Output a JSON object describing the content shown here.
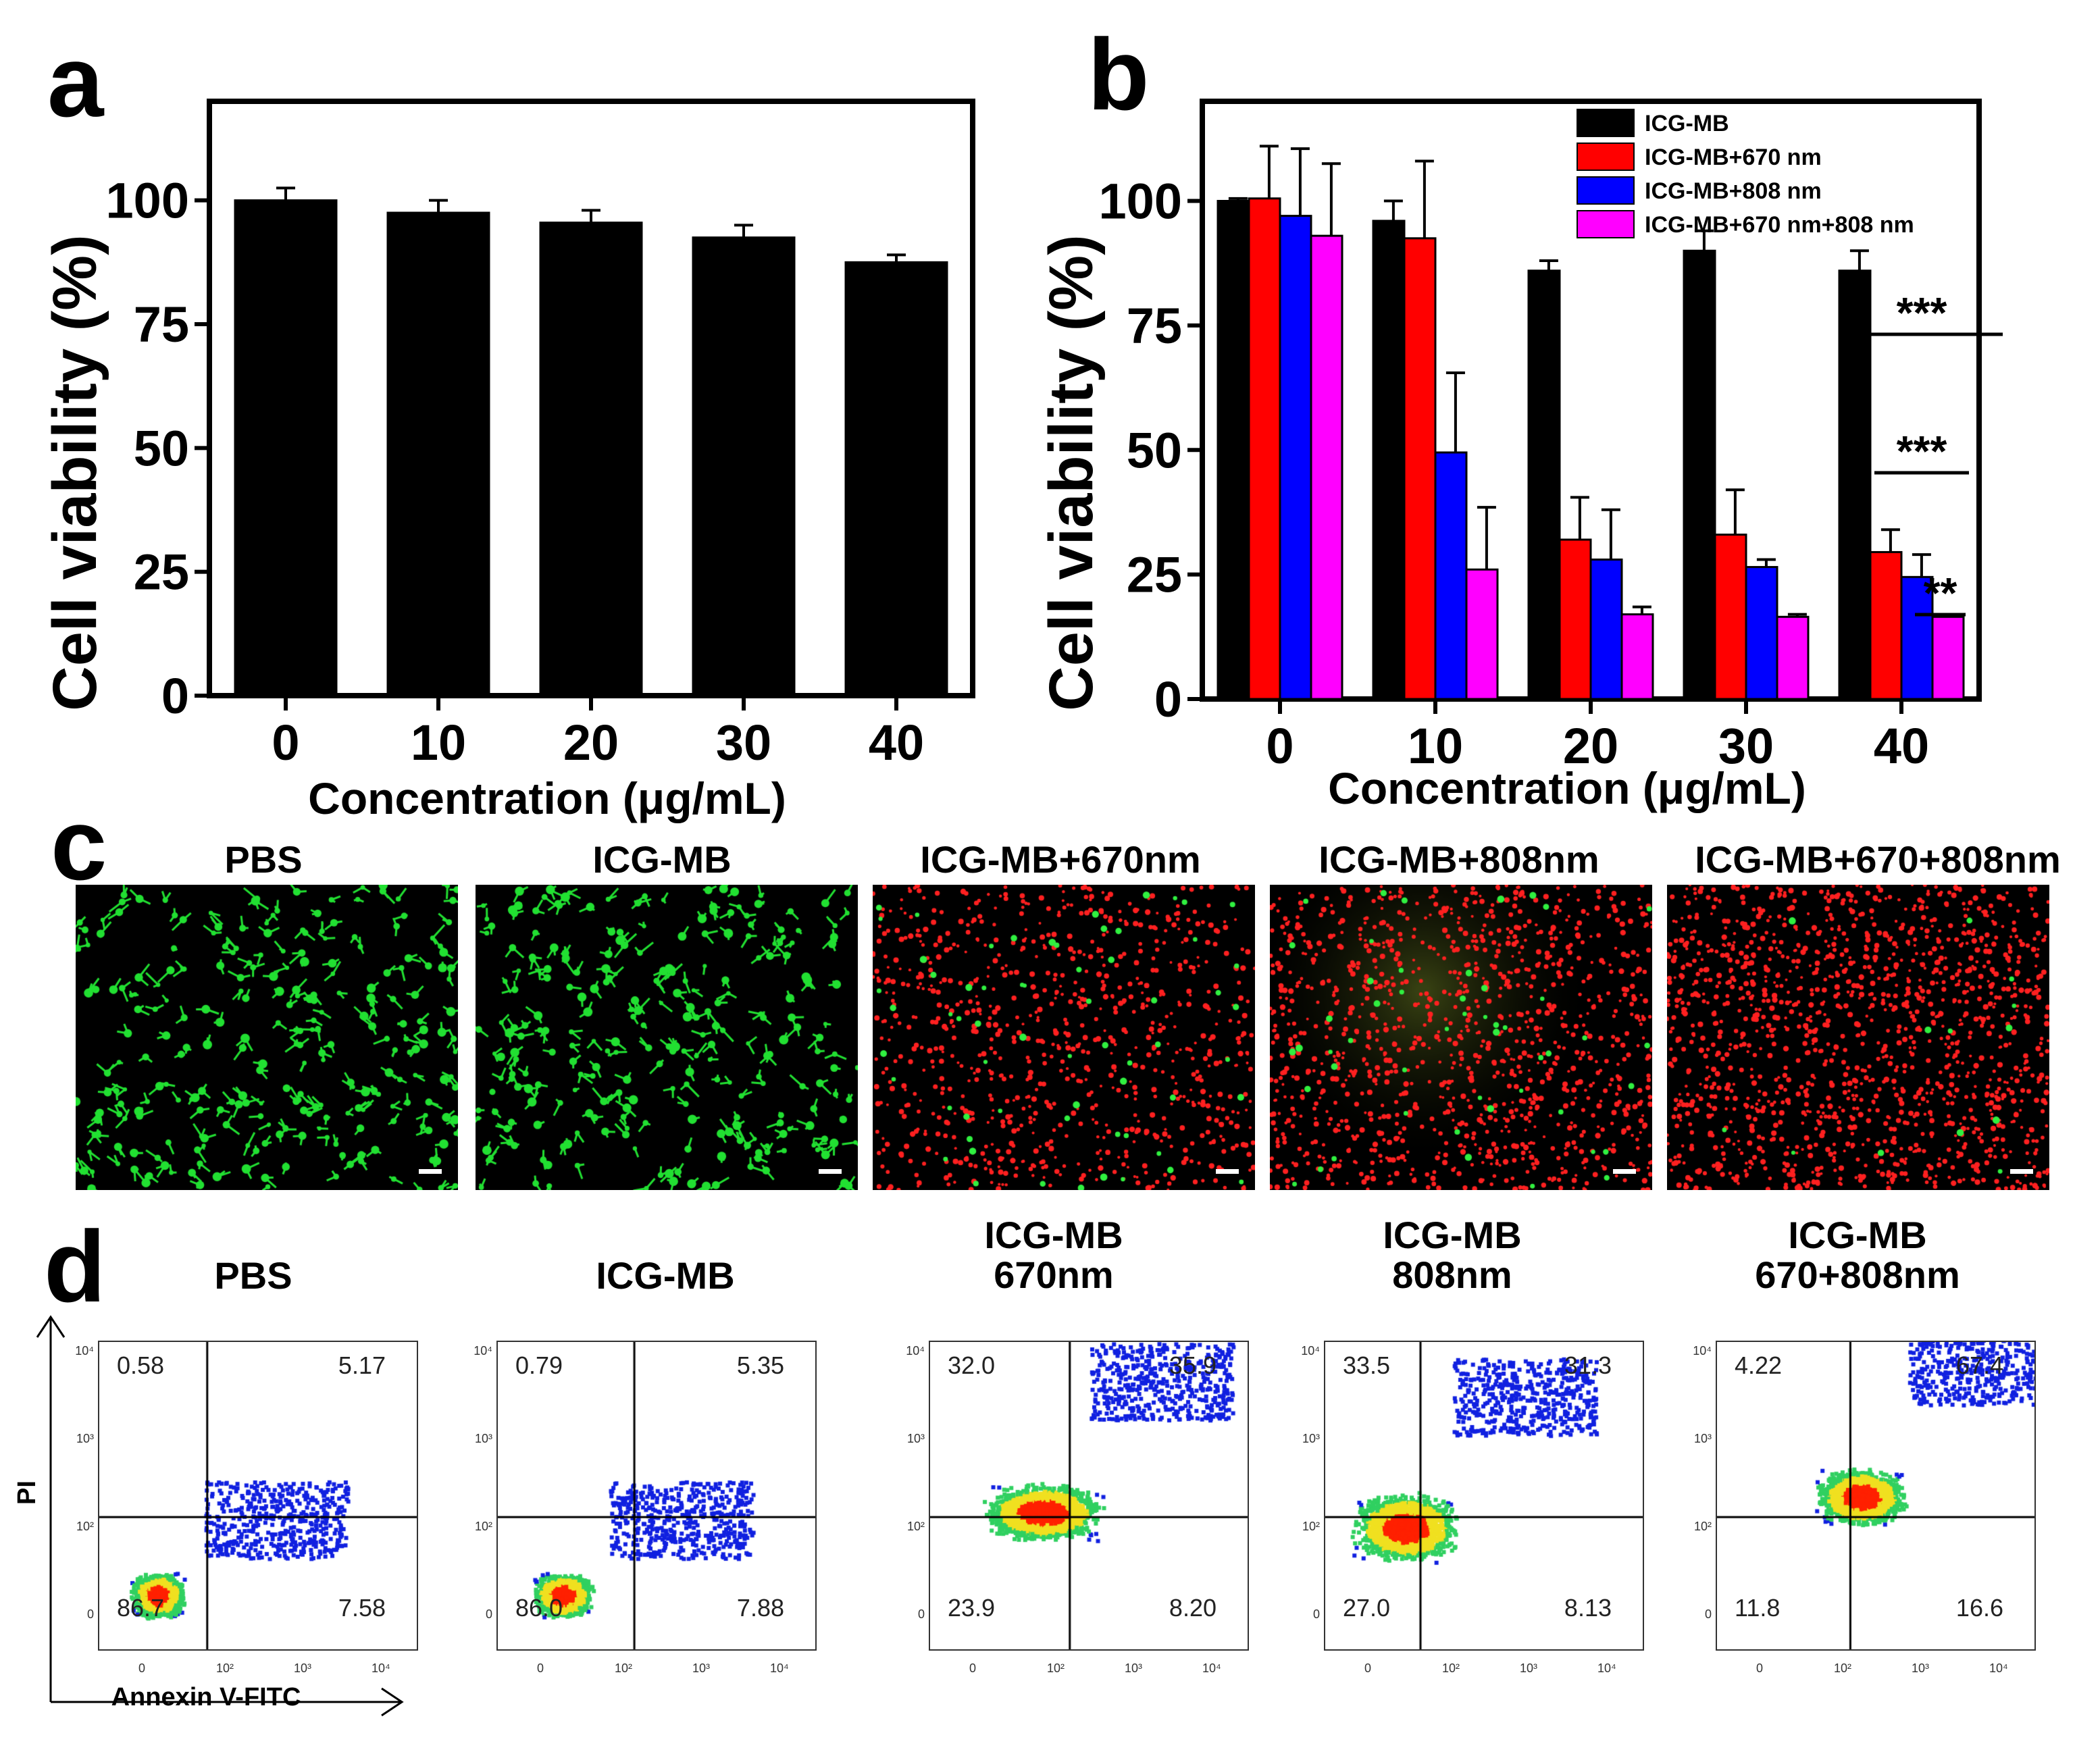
{
  "panels": {
    "a": "a",
    "b": "b",
    "c": "c",
    "d": "d"
  },
  "chart_data": [
    {
      "id": "a",
      "type": "bar",
      "title": "",
      "xlabel": "Concentration (μg/mL)",
      "ylabel": "Cell viability (%)",
      "categories": [
        "0",
        "10",
        "20",
        "30",
        "40"
      ],
      "ylim": [
        0,
        120
      ],
      "yticks": [
        "0",
        "25",
        "50",
        "75",
        "100"
      ],
      "series": [
        {
          "name": "ICG-MB",
          "color": "#000000",
          "values": [
            100,
            97.5,
            95.5,
            92.5,
            87.5
          ],
          "errors": [
            2.5,
            2.5,
            2.5,
            2.5,
            1.5
          ]
        }
      ]
    },
    {
      "id": "b",
      "type": "bar",
      "title": "",
      "xlabel": "Concentration (μg/mL)",
      "ylabel": "Cell viability (%)",
      "categories": [
        "0",
        "10",
        "20",
        "30",
        "40"
      ],
      "ylim": [
        0,
        120
      ],
      "yticks": [
        "0",
        "25",
        "50",
        "75",
        "100"
      ],
      "legend_position": "top-right",
      "series": [
        {
          "name": "ICG-MB",
          "color": "#000000",
          "values": [
            100,
            96,
            86,
            90,
            86
          ],
          "errors": [
            0.5,
            4,
            2,
            4,
            4
          ]
        },
        {
          "name": "ICG-MB+670 nm",
          "color": "#ff0000",
          "values": [
            100.5,
            92.5,
            32,
            33,
            29.5
          ],
          "errors": [
            10.5,
            15.5,
            8.5,
            9,
            4.5
          ]
        },
        {
          "name": "ICG-MB+808 nm",
          "color": "#0000ff",
          "values": [
            97,
            49.5,
            28,
            26.5,
            24.5
          ],
          "errors": [
            13.5,
            16,
            10,
            1.5,
            4.5
          ]
        },
        {
          "name": "ICG-MB+670 nm+808 nm",
          "color": "#ff00ff",
          "values": [
            93,
            26,
            17,
            16.5,
            16.5
          ],
          "errors": [
            14.5,
            12.5,
            1.5,
            0.5,
            0.5
          ]
        }
      ],
      "annotations": [
        "***",
        "***",
        "**"
      ]
    }
  ],
  "microscopy": [
    {
      "title": "PBS",
      "green": 1.0,
      "red": 0.0
    },
    {
      "title": "ICG-MB",
      "green": 1.0,
      "red": 0.0
    },
    {
      "title": "ICG-MB+670nm",
      "green": 0.25,
      "red": 0.6
    },
    {
      "title": "ICG-MB+808nm",
      "green": 0.2,
      "red": 0.8
    },
    {
      "title": "ICG-MB+670+808nm",
      "green": 0.05,
      "red": 1.0
    }
  ],
  "flow": {
    "axis_y": "PI",
    "axis_x": "Annexin V-FITC",
    "tick_labels": [
      "0",
      "10²",
      "10³",
      "10⁴"
    ],
    "plots": [
      {
        "title1": "PBS",
        "title2": "",
        "q_ul": "0.58",
        "q_ur": "5.17",
        "q_ll": "86.7",
        "q_lr": "7.58"
      },
      {
        "title1": "ICG-MB",
        "title2": "",
        "q_ul": "0.79",
        "q_ur": "5.35",
        "q_ll": "86.0",
        "q_lr": "7.88"
      },
      {
        "title1": "ICG-MB",
        "title2": "670nm",
        "q_ul": "32.0",
        "q_ur": "35.9",
        "q_ll": "23.9",
        "q_lr": "8.20"
      },
      {
        "title1": "ICG-MB",
        "title2": "808nm",
        "q_ul": "33.5",
        "q_ur": "31.3",
        "q_ll": "27.0",
        "q_lr": "8.13"
      },
      {
        "title1": "ICG-MB",
        "title2": "670+808nm",
        "q_ul": "4.22",
        "q_ur": "67.4",
        "q_ll": "11.8",
        "q_lr": "16.6"
      }
    ]
  }
}
